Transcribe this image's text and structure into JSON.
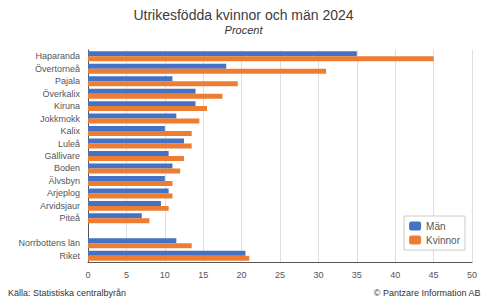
{
  "chart_data": {
    "type": "bar",
    "orientation": "horizontal",
    "title": "Utrikesfödda kvinnor och män 2024",
    "subtitle": "Procent",
    "categories": [
      "Haparanda",
      "Övertorneå",
      "Pajala",
      "Överkalix",
      "Kiruna",
      "Jokkmokk",
      "Kalix",
      "Luleå",
      "Gällivare",
      "Boden",
      "Älvsbyn",
      "Arjeplog",
      "Arvidsjaur",
      "Piteå",
      null,
      "Norrbottens län",
      "Riket"
    ],
    "series": [
      {
        "name": "Män",
        "color": "#4472c4",
        "values": [
          35.0,
          18.0,
          11.0,
          14.0,
          14.0,
          11.5,
          10.0,
          12.5,
          10.5,
          11.0,
          10.0,
          10.5,
          9.5,
          7.0,
          null,
          11.5,
          20.5
        ]
      },
      {
        "name": "Kvinnor",
        "color": "#ed7d31",
        "values": [
          45.0,
          31.0,
          19.5,
          17.5,
          15.5,
          14.5,
          13.5,
          13.5,
          12.5,
          12.0,
          11.0,
          11.0,
          10.5,
          8.0,
          null,
          13.5,
          21.0
        ]
      }
    ],
    "xlim": [
      0,
      50
    ],
    "xticks": [
      0,
      5,
      10,
      15,
      20,
      25,
      30,
      35,
      40,
      45,
      50
    ],
    "grid": true,
    "legend": "lower right",
    "annotations": [
      "Källa: Statistiska centralbyrån",
      "© Pantzare Information AB"
    ]
  }
}
